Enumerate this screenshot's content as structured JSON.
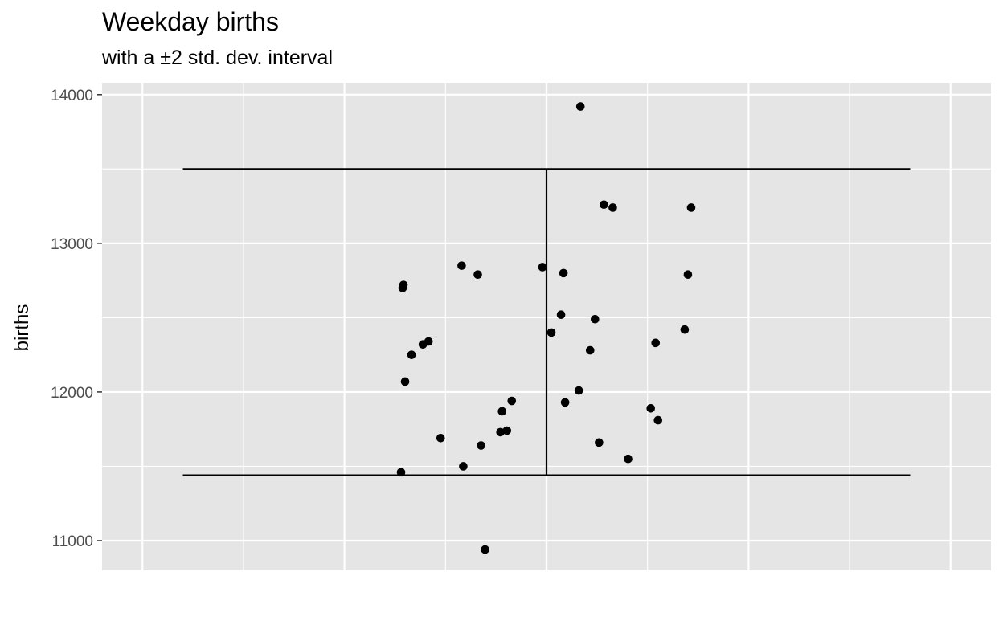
{
  "chart_data": {
    "type": "scatter",
    "title": "Weekday births",
    "subtitle": "with a ±2 std. dev. interval",
    "xlabel": "",
    "ylabel": "births",
    "ylim": [
      10800,
      14080
    ],
    "xlim": [
      0.45,
      1.55
    ],
    "yticks": [
      11000,
      12000,
      13000,
      14000
    ],
    "yticklabels": [
      "11000",
      "12000",
      "13000",
      "14000"
    ],
    "grid": true,
    "legend": "none",
    "colors": {
      "panel_background": "#e5e5e5",
      "grid_line": "#ffffff",
      "point": "#000000",
      "errorbar": "#000000"
    },
    "errorbar": {
      "x": 1.0,
      "ymin": 11440,
      "ymax": 13500,
      "half_width": 0.45
    },
    "points": [
      {
        "x": 0.82,
        "y": 11460
      },
      {
        "x": 0.823,
        "y": 12720
      },
      {
        "x": 0.822,
        "y": 12700
      },
      {
        "x": 0.825,
        "y": 12070
      },
      {
        "x": 0.833,
        "y": 12250
      },
      {
        "x": 0.847,
        "y": 12320
      },
      {
        "x": 0.854,
        "y": 12340
      },
      {
        "x": 0.869,
        "y": 11690
      },
      {
        "x": 0.895,
        "y": 12850
      },
      {
        "x": 0.897,
        "y": 11500
      },
      {
        "x": 0.915,
        "y": 12790
      },
      {
        "x": 0.919,
        "y": 11640
      },
      {
        "x": 0.924,
        "y": 10940
      },
      {
        "x": 0.943,
        "y": 11730
      },
      {
        "x": 0.945,
        "y": 11870
      },
      {
        "x": 0.951,
        "y": 11740
      },
      {
        "x": 0.957,
        "y": 11940
      },
      {
        "x": 0.995,
        "y": 12840
      },
      {
        "x": 1.006,
        "y": 12400
      },
      {
        "x": 1.018,
        "y": 12520
      },
      {
        "x": 1.021,
        "y": 12800
      },
      {
        "x": 1.023,
        "y": 11930
      },
      {
        "x": 1.04,
        "y": 12010
      },
      {
        "x": 1.042,
        "y": 13920
      },
      {
        "x": 1.054,
        "y": 12280
      },
      {
        "x": 1.06,
        "y": 12490
      },
      {
        "x": 1.065,
        "y": 11660
      },
      {
        "x": 1.071,
        "y": 13260
      },
      {
        "x": 1.082,
        "y": 13240
      },
      {
        "x": 1.101,
        "y": 11550
      },
      {
        "x": 1.129,
        "y": 11890
      },
      {
        "x": 1.135,
        "y": 12330
      },
      {
        "x": 1.138,
        "y": 11810
      },
      {
        "x": 1.171,
        "y": 12420
      },
      {
        "x": 1.175,
        "y": 12790
      },
      {
        "x": 1.179,
        "y": 13240
      }
    ]
  }
}
